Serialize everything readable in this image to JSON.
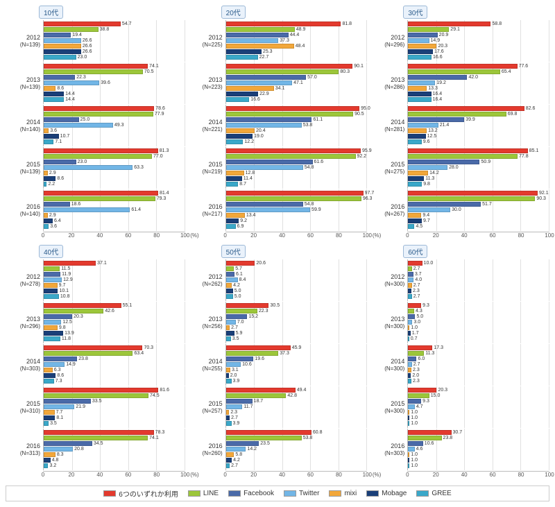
{
  "xmax": 100,
  "axis": {
    "ticks": [
      0,
      20,
      40,
      60,
      80,
      100
    ],
    "unit_label": "(%)"
  },
  "legend": [
    {
      "name": "any6",
      "label": "6つのいずれか利用",
      "color": "#e33a2e"
    },
    {
      "name": "line",
      "label": "LINE",
      "color": "#9cc63a"
    },
    {
      "name": "facebook",
      "label": "Facebook",
      "color": "#4a6aa8"
    },
    {
      "name": "twitter",
      "label": "Twitter",
      "color": "#72b6e6"
    },
    {
      "name": "mixi",
      "label": "mixi",
      "color": "#f2a73a"
    },
    {
      "name": "mobage",
      "label": "Mobage",
      "color": "#1a3f78"
    },
    {
      "name": "gree",
      "label": "GREE",
      "color": "#3aa8c9"
    }
  ],
  "grid_color": "#e0e0e0",
  "panels": [
    {
      "title": "10代",
      "years": [
        {
          "year": "2012",
          "n": 139,
          "v": {
            "any6": 54.7,
            "line": 38.8,
            "facebook": 19.4,
            "twitter": 26.6,
            "mixi": 26.6,
            "mobage": 26.6,
            "gree": 23.0
          }
        },
        {
          "year": "2013",
          "n": 139,
          "v": {
            "any6": 74.1,
            "line": 70.5,
            "facebook": 22.3,
            "twitter": 39.6,
            "mixi": 8.6,
            "mobage": 14.4,
            "gree": 14.4
          }
        },
        {
          "year": "2014",
          "n": 140,
          "v": {
            "any6": 78.6,
            "line": 77.9,
            "facebook": 25.0,
            "twitter": 49.3,
            "mixi": 3.6,
            "mobage": 10.7,
            "gree": 7.1
          }
        },
        {
          "year": "2015",
          "n": 139,
          "v": {
            "any6": 81.3,
            "line": 77.0,
            "facebook": 23.0,
            "twitter": 63.3,
            "mixi": 2.9,
            "mobage": 8.6,
            "gree": 2.2
          }
        },
        {
          "year": "2016",
          "n": 140,
          "v": {
            "any6": 81.4,
            "line": 79.3,
            "facebook": 18.6,
            "twitter": 61.4,
            "mixi": 2.9,
            "mobage": 6.4,
            "gree": 3.6
          }
        }
      ]
    },
    {
      "title": "20代",
      "years": [
        {
          "year": "2012",
          "n": 225,
          "v": {
            "any6": 81.8,
            "line": 48.9,
            "facebook": 44.4,
            "twitter": 37.3,
            "mixi": 48.4,
            "mobage": 25.3,
            "gree": 22.7
          }
        },
        {
          "year": "2013",
          "n": 223,
          "v": {
            "any6": 90.1,
            "line": 80.3,
            "facebook": 57.0,
            "twitter": 47.1,
            "mixi": 34.1,
            "mobage": 22.9,
            "gree": 16.6
          }
        },
        {
          "year": "2014",
          "n": 221,
          "v": {
            "any6": 95.0,
            "line": 90.5,
            "facebook": 61.1,
            "twitter": 53.8,
            "mixi": 20.4,
            "mobage": 19.0,
            "gree": 12.2
          }
        },
        {
          "year": "2015",
          "n": 219,
          "v": {
            "any6": 95.9,
            "line": 92.2,
            "facebook": 61.6,
            "twitter": 54.8,
            "mixi": 12.8,
            "mobage": 11.4,
            "gree": 8.7
          }
        },
        {
          "year": "2016",
          "n": 217,
          "v": {
            "any6": 97.7,
            "line": 96.3,
            "facebook": 54.8,
            "twitter": 59.9,
            "mixi": 13.4,
            "mobage": 9.2,
            "gree": 6.9
          }
        }
      ]
    },
    {
      "title": "30代",
      "years": [
        {
          "year": "2012",
          "n": 296,
          "v": {
            "any6": 58.8,
            "line": 29.1,
            "facebook": 20.9,
            "twitter": 14.9,
            "mixi": 20.3,
            "mobage": 17.6,
            "gree": 16.6
          }
        },
        {
          "year": "2013",
          "n": 286,
          "v": {
            "any6": 77.6,
            "line": 65.4,
            "facebook": 42.0,
            "twitter": 19.2,
            "mixi": 13.3,
            "mobage": 16.4,
            "gree": 16.4
          }
        },
        {
          "year": "2014",
          "n": 281,
          "v": {
            "any6": 82.6,
            "line": 69.8,
            "facebook": 39.9,
            "twitter": 21.4,
            "mixi": 13.2,
            "mobage": 12.5,
            "gree": 9.6
          }
        },
        {
          "year": "2015",
          "n": 275,
          "v": {
            "any6": 85.1,
            "line": 77.8,
            "facebook": 50.9,
            "twitter": 28.0,
            "mixi": 14.2,
            "mobage": 11.3,
            "gree": 9.8
          }
        },
        {
          "year": "2016",
          "n": 267,
          "v": {
            "any6": 92.1,
            "line": 90.3,
            "facebook": 51.7,
            "twitter": 30.0,
            "mixi": 9.4,
            "mobage": 9.7,
            "gree": 4.5
          }
        }
      ]
    },
    {
      "title": "40代",
      "years": [
        {
          "year": "2012",
          "n": 278,
          "v": {
            "any6": 37.1,
            "line": 11.5,
            "facebook": 11.9,
            "twitter": 12.9,
            "mixi": 9.7,
            "mobage": 10.1,
            "gree": 10.8
          }
        },
        {
          "year": "2013",
          "n": 296,
          "v": {
            "any6": 55.1,
            "line": 42.6,
            "facebook": 20.3,
            "twitter": 12.5,
            "mixi": 9.8,
            "mobage": 13.9,
            "gree": 11.8
          }
        },
        {
          "year": "2014",
          "n": 303,
          "v": {
            "any6": 70.3,
            "line": 63.4,
            "facebook": 23.8,
            "twitter": 14.9,
            "mixi": 6.3,
            "mobage": 8.6,
            "gree": 7.3
          }
        },
        {
          "year": "2015",
          "n": 310,
          "v": {
            "any6": 81.6,
            "line": 74.5,
            "facebook": 33.5,
            "twitter": 21.9,
            "mixi": 7.7,
            "mobage": 8.1,
            "gree": 3.5
          }
        },
        {
          "year": "2016",
          "n": 313,
          "v": {
            "any6": 78.3,
            "line": 74.1,
            "facebook": 34.5,
            "twitter": 20.8,
            "mixi": 8.3,
            "mobage": 4.8,
            "gree": 3.2
          }
        }
      ]
    },
    {
      "title": "50代",
      "years": [
        {
          "year": "2012",
          "n": 262,
          "v": {
            "any6": 20.6,
            "line": 5.7,
            "facebook": 6.1,
            "twitter": 8.4,
            "mixi": 4.2,
            "mobage": 5.0,
            "gree": 5.0
          }
        },
        {
          "year": "2013",
          "n": 256,
          "v": {
            "any6": 30.5,
            "line": 22.3,
            "facebook": 15.2,
            "twitter": 7.0,
            "mixi": 2.7,
            "mobage": 5.9,
            "gree": 3.5
          }
        },
        {
          "year": "2014",
          "n": 255,
          "v": {
            "any6": 45.9,
            "line": 37.3,
            "facebook": 19.6,
            "twitter": 10.6,
            "mixi": 3.1,
            "mobage": 2.0,
            "gree": 3.9
          }
        },
        {
          "year": "2015",
          "n": 257,
          "v": {
            "any6": 49.4,
            "line": 42.8,
            "facebook": 18.7,
            "twitter": 11.7,
            "mixi": 2.3,
            "mobage": 2.7,
            "gree": 3.9
          }
        },
        {
          "year": "2016",
          "n": 260,
          "v": {
            "any6": 60.8,
            "line": 53.8,
            "facebook": 23.5,
            "twitter": 14.2,
            "mixi": 5.8,
            "mobage": 4.2,
            "gree": 2.7
          }
        }
      ]
    },
    {
      "title": "60代",
      "years": [
        {
          "year": "2012",
          "n": 300,
          "v": {
            "any6": 10.0,
            "line": 2.7,
            "facebook": 3.7,
            "twitter": 4.0,
            "mixi": 2.7,
            "mobage": 2.3,
            "gree": 2.7
          }
        },
        {
          "year": "2013",
          "n": 300,
          "v": {
            "any6": 9.3,
            "line": 4.3,
            "facebook": 5.0,
            "twitter": 3.0,
            "mixi": 1.0,
            "mobage": 1.7,
            "gree": 0.7
          }
        },
        {
          "year": "2014",
          "n": 300,
          "v": {
            "any6": 17.3,
            "line": 11.3,
            "facebook": 6.0,
            "twitter": 2.7,
            "mixi": 2.3,
            "mobage": 2.0,
            "gree": 2.3
          }
        },
        {
          "year": "2015",
          "n": 300,
          "v": {
            "any6": 20.3,
            "line": 15.0,
            "facebook": 9.3,
            "twitter": 4.7,
            "mixi": 1.0,
            "mobage": 1.0,
            "gree": 1.0
          }
        },
        {
          "year": "2016",
          "n": 303,
          "v": {
            "any6": 30.7,
            "line": 23.8,
            "facebook": 10.6,
            "twitter": 4.6,
            "mixi": 1.0,
            "mobage": 1.0,
            "gree": 1.0
          }
        }
      ]
    }
  ]
}
